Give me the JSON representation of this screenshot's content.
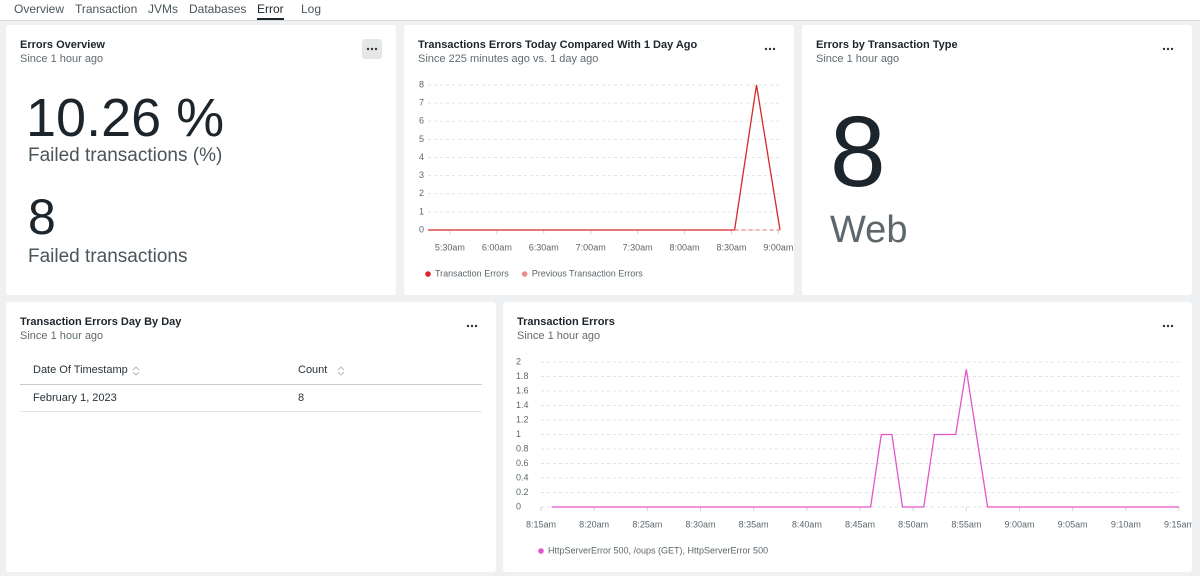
{
  "tabs": [
    "Overview",
    "Transaction",
    "JVMs",
    "Databases",
    "Error",
    "Log"
  ],
  "active_tab": 4,
  "errors_overview": {
    "title": "Errors Overview",
    "subtitle": "Since 1 hour ago",
    "rate": "10.26 %",
    "rate_label": "Failed transactions (%)",
    "count": "8",
    "count_label": "Failed transactions"
  },
  "errors_by_type": {
    "title": "Errors by Transaction Type",
    "subtitle": "Since 1 hour ago",
    "value": "8",
    "label": "Web"
  },
  "day_table": {
    "title": "Transaction Errors Day By Day",
    "subtitle": "Since 1 hour ago",
    "columns": [
      "Date Of Timestamp",
      "Count"
    ],
    "rows": [
      [
        "February 1, 2023",
        "8"
      ]
    ]
  },
  "chart_data": [
    {
      "type": "line",
      "title": "Transactions Errors Today Compared With 1 Day Ago",
      "subtitle": "Since 225 minutes ago vs. 1 day ago",
      "x": [
        "05:16",
        "08:32",
        "08:46",
        "09:01"
      ],
      "series": [
        {
          "name": "Transaction Errors",
          "color": "#d9262b",
          "values": [
            0,
            0,
            8,
            0
          ]
        },
        {
          "name": "Previous Transaction Errors",
          "color": "#f08a8a",
          "dashed": true,
          "values": [
            null,
            0,
            0,
            0
          ]
        }
      ],
      "xlim": [
        "05:16",
        "09:01"
      ],
      "xticks": [
        {
          "value": "05:30",
          "label": "5:30am"
        },
        {
          "value": "06:00",
          "label": "6:00am"
        },
        {
          "value": "06:30",
          "label": "6:30am"
        },
        {
          "value": "07:00",
          "label": "7:00am"
        },
        {
          "value": "07:30",
          "label": "7:30am"
        },
        {
          "value": "08:00",
          "label": "8:00am"
        },
        {
          "value": "08:30",
          "label": "8:30am"
        },
        {
          "value": "09:00",
          "label": "9:00am"
        }
      ],
      "ylim": [
        0,
        8
      ],
      "yticks": [
        0,
        1,
        2,
        3,
        4,
        5,
        6,
        7,
        8
      ],
      "grid": true
    },
    {
      "type": "line",
      "title": "Transaction Errors",
      "subtitle": "Since 1 hour ago",
      "x": [
        "08:16",
        "08:46",
        "08:47",
        "08:48",
        "08:49",
        "08:51",
        "08:52",
        "08:54",
        "08:55",
        "08:57",
        "09:15"
      ],
      "series": [
        {
          "name": "HttpServerError 500, /oups (GET), HttpServerError 500",
          "color": "#e455c8",
          "values": [
            0,
            0,
            1,
            1,
            0,
            0,
            1,
            1,
            1.9,
            0,
            0
          ]
        }
      ],
      "xlim": [
        "08:15",
        "09:15"
      ],
      "xticks": [
        {
          "value": "08:15",
          "label": "8:15am"
        },
        {
          "value": "08:20",
          "label": "8:20am"
        },
        {
          "value": "08:25",
          "label": "8:25am"
        },
        {
          "value": "08:30",
          "label": "8:30am"
        },
        {
          "value": "08:35",
          "label": "8:35am"
        },
        {
          "value": "08:40",
          "label": "8:40am"
        },
        {
          "value": "08:45",
          "label": "8:45am"
        },
        {
          "value": "08:50",
          "label": "8:50am"
        },
        {
          "value": "08:55",
          "label": "8:55am"
        },
        {
          "value": "09:00",
          "label": "9:00am"
        },
        {
          "value": "09:05",
          "label": "9:05am"
        },
        {
          "value": "09:10",
          "label": "9:10am"
        },
        {
          "value": "09:15",
          "label": "9:15am"
        }
      ],
      "ylim": [
        0,
        2
      ],
      "yticks": [
        0,
        0.2,
        0.4,
        0.6,
        0.8,
        1,
        1.2,
        1.4,
        1.6,
        1.8,
        2
      ],
      "grid": true
    }
  ]
}
